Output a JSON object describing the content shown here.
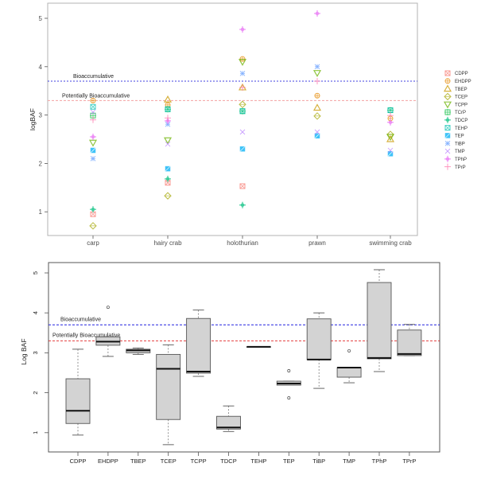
{
  "chart_data": [
    {
      "type": "scatter",
      "title": "",
      "xlabel": "",
      "ylabel": "logBAF",
      "ylim": [
        0.55,
        5.3
      ],
      "yticks": [
        1,
        2,
        3,
        4,
        5
      ],
      "grid": false,
      "legend_position": "right",
      "categories": [
        "carp",
        "hairy crab",
        "holothurian",
        "prawn",
        "swimming crab"
      ],
      "reference_lines": [
        {
          "label": "Bioaccumulative",
          "value": 3.7,
          "color": "#4040e0"
        },
        {
          "label": "Potentially Bioaccumulative",
          "value": 3.3,
          "color": "#f4a0a0"
        }
      ],
      "series": [
        {
          "name": "CDPP",
          "color": "#f8766d",
          "shape": "square-x",
          "values": [
            0.95,
            1.6,
            1.53,
            null,
            null
          ]
        },
        {
          "name": "EHDPP",
          "color": "#e58700",
          "shape": "circle-plus",
          "values": [
            3.3,
            3.21,
            4.16,
            3.4,
            2.93
          ]
        },
        {
          "name": "TBEP",
          "color": "#c99800",
          "shape": "triangle",
          "values": [
            null,
            3.32,
            3.57,
            3.15,
            2.5
          ]
        },
        {
          "name": "TCEP",
          "color": "#a3a500",
          "shape": "diamond",
          "values": [
            0.71,
            1.33,
            3.22,
            2.98,
            2.6
          ]
        },
        {
          "name": "TCPP",
          "color": "#6bb100",
          "shape": "triangle-down",
          "values": [
            2.43,
            2.48,
            4.1,
            3.87,
            2.55
          ]
        },
        {
          "name": "TCrP",
          "color": "#00ba38",
          "shape": "square-star",
          "values": [
            2.99,
            3.12,
            3.08,
            null,
            3.1
          ]
        },
        {
          "name": "TDCP",
          "color": "#00bf7d",
          "shape": "plus-filled",
          "values": [
            1.05,
            1.68,
            1.14,
            null,
            null
          ]
        },
        {
          "name": "TEHP",
          "color": "#00c0af",
          "shape": "square-x",
          "values": [
            3.17,
            3.12,
            3.08,
            null,
            3.1
          ]
        },
        {
          "name": "TEP",
          "color": "#00b0f6",
          "shape": "square-fill",
          "values": [
            2.27,
            1.89,
            2.3,
            2.57,
            2.2
          ]
        },
        {
          "name": "TiBP",
          "color": "#619cff",
          "shape": "asterisk",
          "values": [
            2.1,
            2.81,
            3.86,
            4.0,
            null
          ]
        },
        {
          "name": "TMP",
          "color": "#b983ff",
          "shape": "x",
          "values": [
            3.06,
            2.4,
            2.65,
            2.65,
            2.27
          ]
        },
        {
          "name": "TPhP",
          "color": "#e76bf3",
          "shape": "plus-filled",
          "values": [
            2.55,
            2.88,
            4.77,
            5.1,
            2.85
          ]
        },
        {
          "name": "TPrP",
          "color": "#ff67a4",
          "shape": "plus",
          "values": [
            2.9,
            2.94,
            3.57,
            3.7,
            2.99
          ]
        }
      ]
    },
    {
      "type": "box",
      "title": "",
      "xlabel": "",
      "ylabel": "Log BAF",
      "ylim": [
        0.5,
        5.3
      ],
      "yticks": [
        1,
        2,
        3,
        4,
        5
      ],
      "grid": false,
      "categories": [
        "CDPP",
        "EHDPP",
        "TBEP",
        "TCEP",
        "TCPP",
        "TDCP",
        "TEHP",
        "TEP",
        "TiBP",
        "TMP",
        "TPhP",
        "TPrP"
      ],
      "reference_lines": [
        {
          "label": "Bioaccumulative",
          "value": 3.7,
          "color": "#2020e0"
        },
        {
          "label": "Potentially Bioaccumulative",
          "value": 3.3,
          "color": "#e02020"
        }
      ],
      "boxes": [
        {
          "name": "CDPP",
          "lower_whisker": 0.94,
          "q1": 1.23,
          "median": 1.55,
          "q3": 2.35,
          "upper_whisker": 3.09,
          "outliers": []
        },
        {
          "name": "EHDPP",
          "lower_whisker": 2.91,
          "q1": 3.19,
          "median": 3.28,
          "q3": 3.4,
          "upper_whisker": 3.4,
          "outliers": [
            4.14
          ]
        },
        {
          "name": "TBEP",
          "lower_whisker": 2.96,
          "q1": 3.0,
          "median": 3.06,
          "q3": 3.09,
          "upper_whisker": 3.12,
          "outliers": []
        },
        {
          "name": "TCEP",
          "lower_whisker": 0.7,
          "q1": 1.33,
          "median": 2.6,
          "q3": 2.96,
          "upper_whisker": 3.2,
          "outliers": []
        },
        {
          "name": "TCPP",
          "lower_whisker": 2.41,
          "q1": 2.49,
          "median": 2.53,
          "q3": 3.86,
          "upper_whisker": 4.07,
          "outliers": []
        },
        {
          "name": "TDCP",
          "lower_whisker": 1.03,
          "q1": 1.09,
          "median": 1.13,
          "q3": 1.41,
          "upper_whisker": 1.67,
          "outliers": []
        },
        {
          "name": "TEHP",
          "lower_whisker": 3.15,
          "q1": 3.15,
          "median": 3.15,
          "q3": 3.15,
          "upper_whisker": 3.15,
          "outliers": []
        },
        {
          "name": "TEP",
          "lower_whisker": 2.19,
          "q1": 2.19,
          "median": 2.23,
          "q3": 2.29,
          "upper_whisker": 2.29,
          "outliers": [
            2.55,
            1.87
          ]
        },
        {
          "name": "TiBP",
          "lower_whisker": 2.11,
          "q1": 2.83,
          "median": 2.83,
          "q3": 3.85,
          "upper_whisker": 4.0,
          "outliers": []
        },
        {
          "name": "TMP",
          "lower_whisker": 2.25,
          "q1": 2.39,
          "median": 2.63,
          "q3": 2.63,
          "upper_whisker": 2.63,
          "outliers": [
            3.05
          ]
        },
        {
          "name": "TPhP",
          "lower_whisker": 2.53,
          "q1": 2.85,
          "median": 2.87,
          "q3": 4.76,
          "upper_whisker": 5.08,
          "outliers": []
        },
        {
          "name": "TPrP",
          "lower_whisker": 2.93,
          "q1": 2.93,
          "median": 2.97,
          "q3": 3.57,
          "upper_whisker": 3.71,
          "outliers": []
        }
      ]
    }
  ]
}
